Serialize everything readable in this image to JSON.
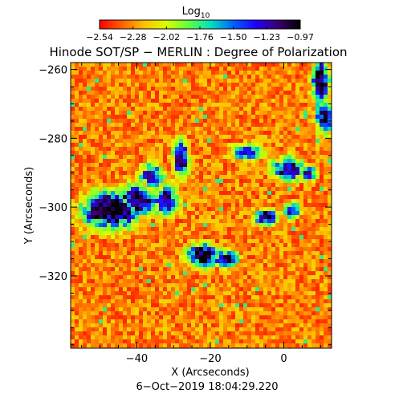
{
  "chart_data": {
    "type": "heatmap",
    "title": "Hinode SOT/SP − MERLIN : Degree of Polarization",
    "colorbar": {
      "label": "Log",
      "label_subscript": "10",
      "tick_labels": [
        "−2.54",
        "−2.28",
        "−2.02",
        "−1.76",
        "−1.50",
        "−1.23",
        "−0.97"
      ],
      "range": [
        -2.54,
        -0.97
      ],
      "colors": [
        "#ff0000",
        "#ff6000",
        "#ffc000",
        "#d8ff00",
        "#60ff40",
        "#00e0c0",
        "#0060ff",
        "#2000ff",
        "#3a0070",
        "#000000"
      ]
    },
    "xlabel": "X (Arcseconds)",
    "ylabel": "Y (Arcseconds)",
    "xlim": [
      -58,
      13
    ],
    "ylim": [
      -341,
      -258
    ],
    "x_ticks": [
      -40,
      -20,
      0
    ],
    "x_tick_labels": [
      "−40",
      "−20",
      "0"
    ],
    "y_ticks": [
      -260,
      -280,
      -300,
      -320
    ],
    "y_tick_labels": [
      "−260",
      "−280",
      "−300",
      "−320"
    ],
    "timestamp": "6−Oct−2019 18:04:29.220",
    "background_log_value": -2.3,
    "polarization_patches": [
      {
        "x": -47,
        "y": -301,
        "rx": 7,
        "ry": 5,
        "peak": -0.97
      },
      {
        "x": -40,
        "y": -298,
        "rx": 5,
        "ry": 4,
        "peak": -1.1
      },
      {
        "x": -36,
        "y": -291,
        "rx": 3,
        "ry": 3,
        "peak": -1.3
      },
      {
        "x": -32,
        "y": -298,
        "rx": 3,
        "ry": 4,
        "peak": -1.2
      },
      {
        "x": -28,
        "y": -286,
        "rx": 2,
        "ry": 5,
        "peak": -1.2
      },
      {
        "x": -22,
        "y": -314,
        "rx": 4,
        "ry": 3,
        "peak": -1.0
      },
      {
        "x": -16,
        "y": -315,
        "rx": 3,
        "ry": 2,
        "peak": -1.1
      },
      {
        "x": -5,
        "y": -303,
        "rx": 3,
        "ry": 2,
        "peak": -1.1
      },
      {
        "x": 2,
        "y": -301,
        "rx": 2,
        "ry": 2,
        "peak": -1.2
      },
      {
        "x": -10,
        "y": -284,
        "rx": 4,
        "ry": 2,
        "peak": -1.3
      },
      {
        "x": 1,
        "y": -289,
        "rx": 4,
        "ry": 3,
        "peak": -1.2
      },
      {
        "x": 7,
        "y": -290,
        "rx": 2,
        "ry": 2,
        "peak": -1.3
      },
      {
        "x": 10,
        "y": -264,
        "rx": 2,
        "ry": 6,
        "peak": -1.0
      },
      {
        "x": 11,
        "y": -274,
        "rx": 2,
        "ry": 4,
        "peak": -1.1
      }
    ]
  }
}
